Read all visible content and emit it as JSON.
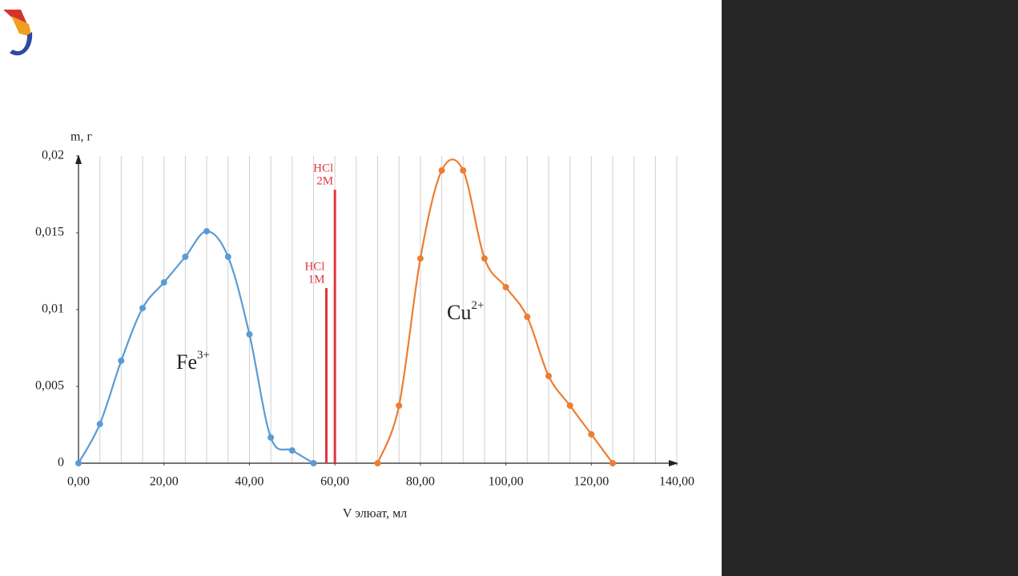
{
  "chart_data": {
    "type": "line",
    "ylabel": "m, г",
    "xlabel": "V элюат, мл",
    "xlim": [
      0,
      140
    ],
    "ylim": [
      0,
      0.02
    ],
    "xticks": [
      {
        "value": 0,
        "label": "0,00"
      },
      {
        "value": 20,
        "label": "20,00"
      },
      {
        "value": 40,
        "label": "40,00"
      },
      {
        "value": 60,
        "label": "60,00"
      },
      {
        "value": 80,
        "label": "80,00"
      },
      {
        "value": 100,
        "label": "100,00"
      },
      {
        "value": 120,
        "label": "120,00"
      },
      {
        "value": 140,
        "label": "140,00"
      }
    ],
    "yticks": [
      0,
      {
        "value": 0.005,
        "label": "0,005"
      },
      {
        "value": 0.01,
        "label": "0,01"
      },
      {
        "value": 0.015,
        "label": "0,015"
      },
      {
        "value": 0.02,
        "label": "0,02"
      }
    ],
    "grid": true,
    "grid_step": 5,
    "smooth": true,
    "series": [
      {
        "label": {
          "base": "Fe",
          "sup": "3+"
        },
        "color": "#5b9bd5",
        "x": [
          0,
          5,
          10,
          15,
          20,
          25,
          30,
          35,
          40,
          45,
          50,
          55
        ],
        "values": [
          0,
          0.00255,
          0.00667,
          0.0101,
          0.01177,
          0.01344,
          0.0151,
          0.01344,
          0.00839,
          0.00167,
          0.00083,
          0
        ]
      },
      {
        "label": {
          "base": "Cu",
          "sup": "2+"
        },
        "color": "#ed7d31",
        "x": [
          70,
          75,
          80,
          85,
          90,
          95,
          100,
          105,
          110,
          115,
          120,
          125
        ],
        "values": [
          0,
          0.00375,
          0.01333,
          0.01906,
          0.01906,
          0.01333,
          0.01146,
          0.00953,
          0.00568,
          0.00375,
          0.00188,
          0
        ]
      }
    ],
    "markers": [
      {
        "lines": [
          "HCl",
          "1M"
        ],
        "x": 58,
        "value": 0.0114,
        "color": "#e0343c"
      },
      {
        "lines": [
          "HCl",
          "2M"
        ],
        "x": 60,
        "value": 0.0178,
        "color": "#e0343c"
      }
    ]
  }
}
